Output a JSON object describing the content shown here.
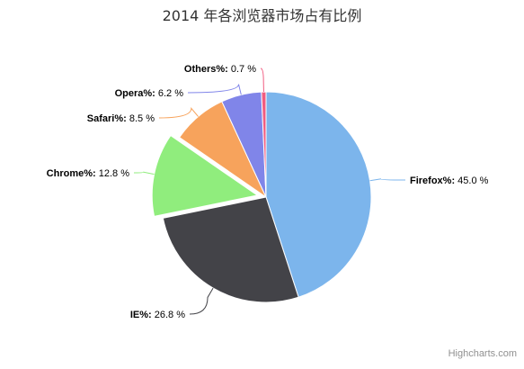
{
  "chart_data": {
    "type": "pie",
    "title": "2014 年各浏览器市场占有比例",
    "label_suffix": "%",
    "slices": [
      {
        "name": "Firefox",
        "value": 45.0,
        "color": "#7cb5ec",
        "label": "Firefox%: 45.0 %",
        "sliced": false
      },
      {
        "name": "IE",
        "value": 26.8,
        "color": "#434348",
        "label": "IE%: 26.8 %",
        "sliced": false
      },
      {
        "name": "Chrome",
        "value": 12.8,
        "color": "#90ed7d",
        "label": "Chrome%: 12.8 %",
        "sliced": true
      },
      {
        "name": "Safari",
        "value": 8.5,
        "color": "#f7a35c",
        "label": "Safari%: 8.5 %",
        "sliced": false
      },
      {
        "name": "Opera",
        "value": 6.2,
        "color": "#8085e9",
        "label": "Opera%: 6.2 %",
        "sliced": false
      },
      {
        "name": "Others",
        "value": 0.7,
        "color": "#f15c80",
        "label": "Others%: 0.7 %",
        "sliced": false
      }
    ],
    "start_angle": "top, clockwise",
    "legend": "none"
  },
  "credits": "Highcharts.com"
}
